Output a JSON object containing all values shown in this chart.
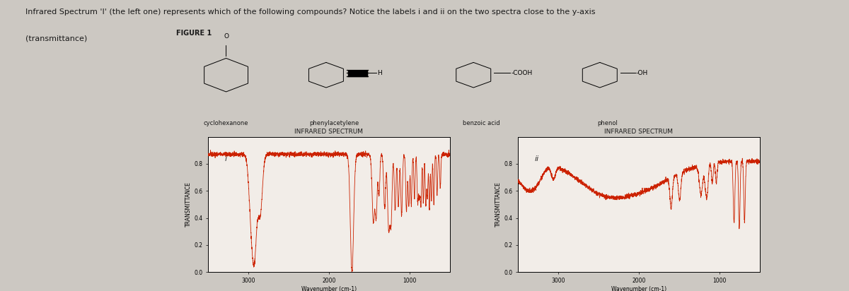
{
  "title_line1": "Infrared Spectrum 'I' (the left one) represents which of the following compounds? Notice the labels i and ii on the two spectra close to the y-axis",
  "title_line2": "(transmittance)",
  "figure_label": "FIGURE 1",
  "compounds": [
    "cyclohexanone",
    "phenylacetylene",
    "benzoic acid",
    "phenol"
  ],
  "spectrum1_title": "INFRARED SPECTRUM",
  "spectrum2_title": "INFRARED SPECTRUM",
  "spectrum1_label": "i",
  "spectrum2_label": "ii",
  "xlabel": "Wavenumber (cm-1)",
  "ylabel": "TRANSMITTANCE",
  "yticks": [
    0.0,
    0.2,
    0.4,
    0.6,
    0.8
  ],
  "xticks": [
    3000,
    2000,
    1000
  ],
  "bg_color": "#ccc8c2",
  "plot_bg": "#f2ede8",
  "box_bg": "#f0ece8",
  "line_color": "#cc2200",
  "text_color": "#1a1a1a",
  "title_fontsize": 8.0,
  "label_fontsize": 6.5,
  "spectrum_title_fontsize": 6.5,
  "compound_fontsize": 6.0,
  "axes_label_fontsize": 5.5,
  "tick_fontsize": 5.5
}
